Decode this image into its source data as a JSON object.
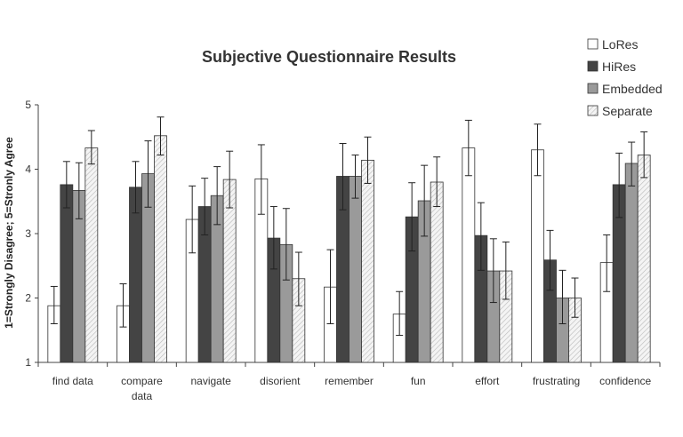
{
  "chart_data": {
    "type": "bar",
    "title": "Subjective Questionnaire Results",
    "ylabel": "1=Strongly Disagree; 5=Stronly Agree",
    "xlabel": "",
    "ylim": [
      1,
      5
    ],
    "yticks": [
      "1",
      "2",
      "3",
      "4",
      "5"
    ],
    "categories": [
      "find data",
      "compare data",
      "navigate",
      "disorient",
      "remember",
      "fun",
      "effort",
      "frustrating",
      "confidence"
    ],
    "category_lines": [
      [
        "find data"
      ],
      [
        "compare",
        "data"
      ],
      [
        "navigate"
      ],
      [
        "disorient"
      ],
      [
        "remember"
      ],
      [
        "fun"
      ],
      [
        "effort"
      ],
      [
        "frustrating"
      ],
      [
        "confidence"
      ]
    ],
    "legend_position": "top-right",
    "grid": false,
    "series": [
      {
        "name": "LoRes",
        "color": "#ffffff",
        "pattern": "solid",
        "values": [
          1.88,
          1.88,
          3.22,
          3.85,
          2.17,
          1.75,
          4.33,
          4.3,
          2.55
        ],
        "error_low": [
          1.6,
          1.55,
          2.7,
          3.3,
          1.6,
          1.42,
          3.9,
          3.9,
          2.1
        ],
        "error_high": [
          2.18,
          2.22,
          3.74,
          4.38,
          2.75,
          2.1,
          4.76,
          4.7,
          2.98
        ]
      },
      {
        "name": "HiRes",
        "color": "#444444",
        "pattern": "solid",
        "values": [
          3.76,
          3.72,
          3.42,
          2.93,
          3.89,
          3.26,
          2.97,
          2.59,
          3.76
        ],
        "error_low": [
          3.4,
          3.32,
          2.98,
          2.45,
          3.37,
          2.73,
          2.43,
          2.12,
          3.25
        ],
        "error_high": [
          4.12,
          4.12,
          3.86,
          3.42,
          4.4,
          3.79,
          3.48,
          3.05,
          4.25
        ]
      },
      {
        "name": "Embedded",
        "color": "#9a9a9a",
        "pattern": "solid",
        "values": [
          3.67,
          3.93,
          3.59,
          2.83,
          3.89,
          3.51,
          2.42,
          2.0,
          4.09
        ],
        "error_low": [
          3.23,
          3.41,
          3.14,
          2.28,
          3.55,
          2.96,
          1.93,
          1.6,
          3.74
        ],
        "error_high": [
          4.1,
          4.44,
          4.04,
          3.39,
          4.22,
          4.06,
          2.92,
          2.43,
          4.42
        ]
      },
      {
        "name": "Separate",
        "color": "#e8e8e8",
        "pattern": "hatch",
        "values": [
          4.33,
          4.52,
          3.84,
          2.3,
          4.14,
          3.8,
          2.42,
          2.0,
          4.22
        ],
        "error_low": [
          4.08,
          4.22,
          3.4,
          1.88,
          3.78,
          3.42,
          1.98,
          1.7,
          3.87
        ],
        "error_high": [
          4.6,
          4.81,
          4.28,
          2.71,
          4.5,
          4.19,
          2.87,
          2.31,
          4.58
        ]
      }
    ]
  }
}
